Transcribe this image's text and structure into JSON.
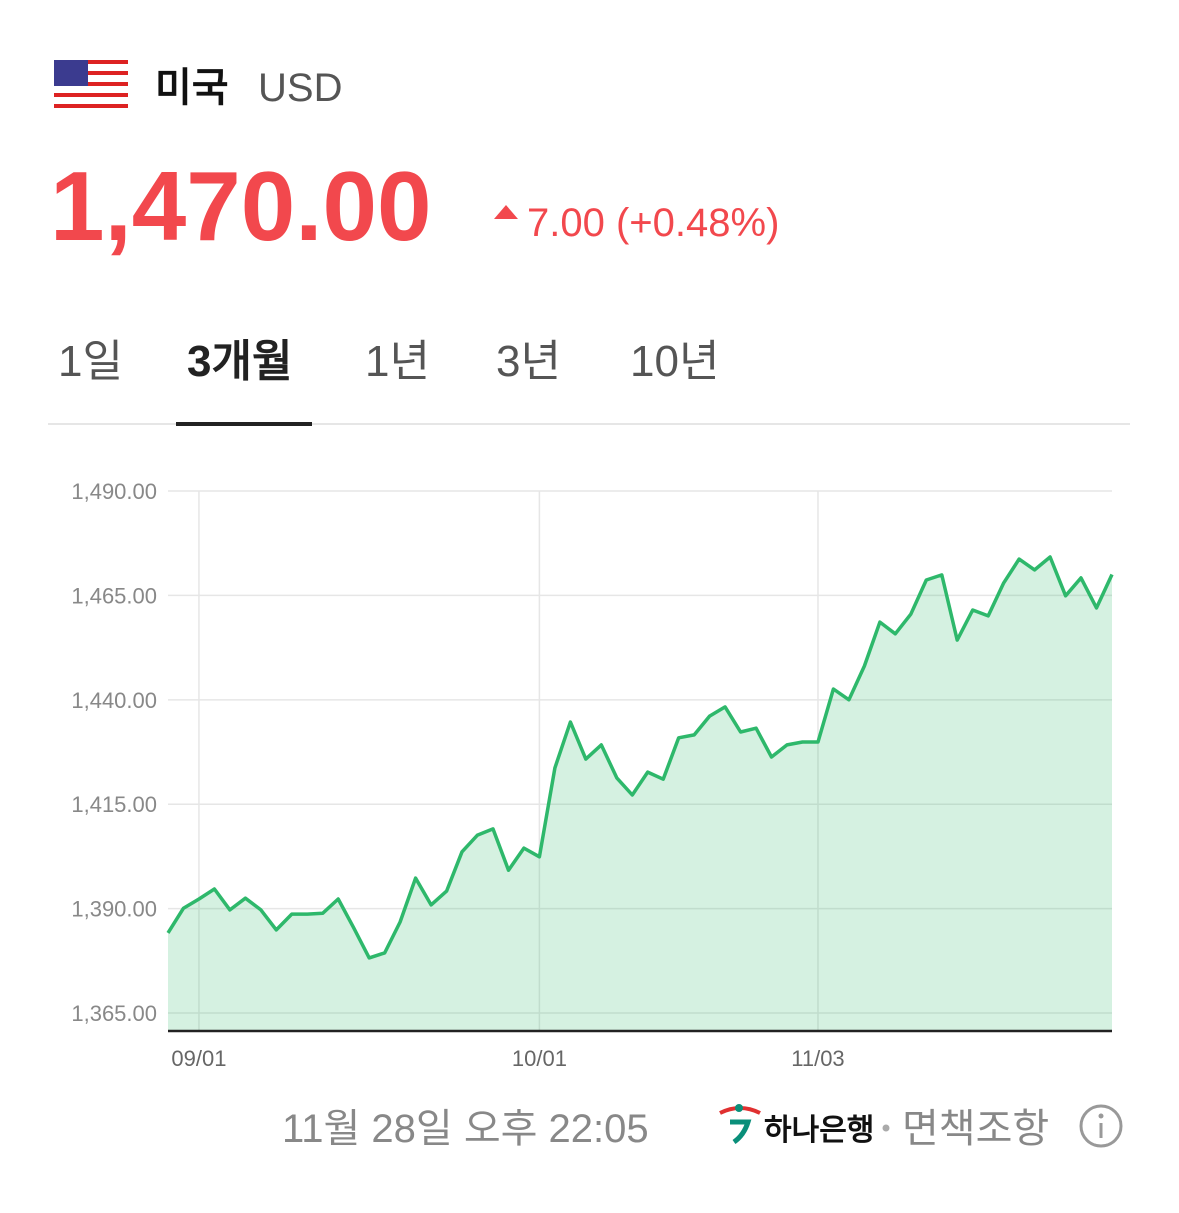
{
  "header": {
    "country": "미국",
    "currency": "USD"
  },
  "price": {
    "value": "1,470.00",
    "change": "7.00 (+0.48%)"
  },
  "tabs": [
    "1일",
    "3개월",
    "1년",
    "3년",
    "10년"
  ],
  "chart_data": {
    "type": "line",
    "categories": [
      null,
      null,
      "09/01",
      null,
      null,
      null,
      null,
      null,
      null,
      null,
      null,
      null,
      null,
      null,
      null,
      null,
      null,
      null,
      null,
      null,
      null,
      null,
      null,
      null,
      "10/01",
      null,
      null,
      null,
      null,
      null,
      null,
      null,
      null,
      null,
      null,
      null,
      null,
      null,
      null,
      null,
      null,
      null,
      "11/03",
      null,
      null,
      null,
      null,
      null,
      null,
      null,
      null,
      null,
      null,
      null,
      null,
      null,
      null,
      null,
      null,
      null,
      null,
      null
    ],
    "values": [
      1384.2,
      1390.1,
      1392.3,
      1394.7,
      1389.7,
      1392.5,
      1389.7,
      1384.9,
      1388.7,
      1388.7,
      1388.9,
      1392.3,
      1385.4,
      1378.2,
      1379.4,
      1386.8,
      1397.3,
      1390.9,
      1394.2,
      1403.6,
      1407.6,
      1409.1,
      1399.2,
      1404.5,
      1402.4,
      1423.7,
      1434.7,
      1425.8,
      1429.2,
      1421.3,
      1417.2,
      1422.7,
      1421.0,
      1430.9,
      1431.6,
      1436.1,
      1438.3,
      1432.3,
      1433.2,
      1426.3,
      1429.2,
      1429.9,
      1429.9,
      1442.6,
      1440.0,
      1448.1,
      1458.6,
      1455.8,
      1460.5,
      1468.7,
      1469.9,
      1454.3,
      1461.5,
      1460.1,
      1468.0,
      1473.7,
      1471.1,
      1474.2,
      1464.9,
      1469.2,
      1462.0,
      1470.0
    ],
    "color": "#2eb86b",
    "ylim": [
      1360.7,
      1490
    ],
    "yticks": [
      {
        "value": 1365,
        "label": "1,365.00"
      },
      {
        "value": 1390,
        "label": "1,390.00"
      },
      {
        "value": 1415,
        "label": "1,415.00"
      },
      {
        "value": 1440,
        "label": "1,440.00"
      },
      {
        "value": 1465,
        "label": "1,465.00"
      },
      {
        "value": 1490,
        "label": "1,490.00"
      }
    ],
    "grid": true
  },
  "footer": {
    "timestamp": "11월 28일 오후 22:05",
    "bank": "하나은행",
    "disclaimer": "면책조항"
  }
}
